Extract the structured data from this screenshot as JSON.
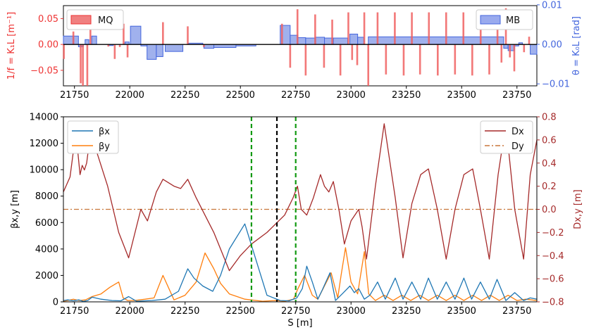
{
  "chart_data": [
    {
      "type": "bar",
      "panel": "magnet lattice",
      "x_range": [
        21700,
        23840
      ],
      "x_ticks": [
        21750,
        22000,
        22250,
        22500,
        22750,
        23000,
        23250,
        23500,
        23750
      ],
      "left_axis": {
        "label": "1/f = K₁L [m⁻¹]",
        "range": [
          -0.08,
          0.075
        ],
        "ticks": [
          0.05,
          0.0,
          -0.05
        ],
        "tick_labels": [
          "0.05",
          "0.00",
          "−0.05"
        ],
        "color": "#ee3333"
      },
      "right_axis": {
        "label": "θ = K₀L [rad]",
        "range": [
          -0.0105,
          0.0098
        ],
        "ticks": [
          0.01,
          0.0,
          -0.01
        ],
        "tick_labels": [
          "0.01",
          "0.00",
          "−0.01"
        ],
        "color": "#4466dd"
      },
      "legend_left": "MQ",
      "legend_right": "MB",
      "quadrupoles": [
        {
          "s": 21702,
          "k": -0.028
        },
        {
          "s": 21745,
          "k": 0.025
        },
        {
          "s": 21778,
          "k": -0.075
        },
        {
          "s": 21788,
          "k": -0.09
        },
        {
          "s": 21808,
          "k": -0.085
        },
        {
          "s": 21822,
          "k": 0.062
        },
        {
          "s": 21903,
          "k": -0.004
        },
        {
          "s": 21932,
          "k": -0.028
        },
        {
          "s": 21955,
          "k": -0.005
        },
        {
          "s": 21972,
          "k": 0.04
        },
        {
          "s": 21990,
          "k": -0.025
        },
        {
          "s": 22150,
          "k": 0.043
        },
        {
          "s": 22262,
          "k": 0.035
        },
        {
          "s": 22335,
          "k": -0.005
        },
        {
          "s": 22688,
          "k": 0.04
        },
        {
          "s": 22725,
          "k": -0.045
        },
        {
          "s": 22758,
          "k": 0.068
        },
        {
          "s": 22795,
          "k": -0.06
        },
        {
          "s": 22838,
          "k": 0.058
        },
        {
          "s": 22878,
          "k": -0.045
        },
        {
          "s": 22915,
          "k": 0.048
        },
        {
          "s": 22952,
          "k": -0.06
        },
        {
          "s": 22988,
          "k": 0.062
        },
        {
          "s": 23005,
          "k": -0.03
        },
        {
          "s": 23028,
          "k": -0.04
        },
        {
          "s": 23060,
          "k": 0.062
        },
        {
          "s": 23078,
          "k": -0.085
        },
        {
          "s": 23120,
          "k": 0.062
        },
        {
          "s": 23158,
          "k": -0.058
        },
        {
          "s": 23198,
          "k": 0.062
        },
        {
          "s": 23238,
          "k": -0.06
        },
        {
          "s": 23275,
          "k": 0.062
        },
        {
          "s": 23312,
          "k": -0.058
        },
        {
          "s": 23352,
          "k": 0.062
        },
        {
          "s": 23392,
          "k": -0.06
        },
        {
          "s": 23430,
          "k": 0.062
        },
        {
          "s": 23470,
          "k": -0.058
        },
        {
          "s": 23508,
          "k": 0.062
        },
        {
          "s": 23548,
          "k": -0.06
        },
        {
          "s": 23586,
          "k": 0.062
        },
        {
          "s": 23625,
          "k": -0.058
        },
        {
          "s": 23662,
          "k": 0.062
        },
        {
          "s": 23680,
          "k": -0.035
        },
        {
          "s": 23700,
          "k": 0.07
        },
        {
          "s": 23718,
          "k": -0.025
        },
        {
          "s": 23738,
          "k": -0.052
        },
        {
          "s": 23782,
          "k": -0.015
        },
        {
          "s": 23805,
          "k": 0.015
        }
      ],
      "dipoles": [
        {
          "s0": 21700,
          "s1": 21745,
          "theta": 0.0021
        },
        {
          "s0": 21745,
          "s1": 21768,
          "theta": 0.0021
        },
        {
          "s0": 21768,
          "s1": 21790,
          "theta": -0.0006
        },
        {
          "s0": 21798,
          "s1": 21815,
          "theta": 0.0012
        },
        {
          "s0": 21828,
          "s1": 21850,
          "theta": 0.0021
        },
        {
          "s0": 21905,
          "s1": 21925,
          "theta": -0.0003
        },
        {
          "s0": 21978,
          "s1": 21997,
          "theta": 0.0006
        },
        {
          "s0": 22003,
          "s1": 22050,
          "theta": 0.0046
        },
        {
          "s0": 22050,
          "s1": 22078,
          "theta": -0.0004
        },
        {
          "s0": 22078,
          "s1": 22120,
          "theta": -0.0038
        },
        {
          "s0": 22120,
          "s1": 22150,
          "theta": -0.0031
        },
        {
          "s0": 22160,
          "s1": 22240,
          "theta": -0.0018
        },
        {
          "s0": 22265,
          "s1": 22330,
          "theta": 0.0003
        },
        {
          "s0": 22335,
          "s1": 22380,
          "theta": -0.001
        },
        {
          "s0": 22380,
          "s1": 22480,
          "theta": -0.0008
        },
        {
          "s0": 22480,
          "s1": 22570,
          "theta": -0.0004
        },
        {
          "s0": 22680,
          "s1": 22725,
          "theta": 0.0048
        },
        {
          "s0": 22725,
          "s1": 22760,
          "theta": 0.0023
        },
        {
          "s0": 22760,
          "s1": 22795,
          "theta": 0.0017
        },
        {
          "s0": 22795,
          "s1": 22840,
          "theta": 0.0016
        },
        {
          "s0": 22840,
          "s1": 22880,
          "theta": 0.0018
        },
        {
          "s0": 22880,
          "s1": 22920,
          "theta": 0.0016
        },
        {
          "s0": 22920,
          "s1": 22985,
          "theta": 0.0016
        },
        {
          "s0": 22995,
          "s1": 23030,
          "theta": 0.0026
        },
        {
          "s0": 23030,
          "s1": 23058,
          "theta": 0.0018
        },
        {
          "s0": 23078,
          "s1": 23690,
          "theta": 0.0019
        },
        {
          "s0": 23690,
          "s1": 23710,
          "theta": -0.001
        },
        {
          "s0": 23710,
          "s1": 23738,
          "theta": -0.0016
        },
        {
          "s0": 23738,
          "s1": 23758,
          "theta": -0.0004
        },
        {
          "s0": 23758,
          "s1": 23775,
          "theta": 0.0004
        },
        {
          "s0": 23810,
          "s1": 23840,
          "theta": -0.0025
        }
      ]
    },
    {
      "type": "line",
      "panel": "optics",
      "x_range": [
        21700,
        23840
      ],
      "x_ticks": [
        21750,
        22000,
        22250,
        22500,
        22750,
        23000,
        23250,
        23500,
        23750
      ],
      "xlabel": "S [m]",
      "left_axis": {
        "label": "βx,y [m]",
        "range": [
          0,
          14000
        ],
        "ticks": [
          0,
          2000,
          4000,
          6000,
          8000,
          10000,
          12000,
          14000
        ]
      },
      "right_axis": {
        "label": "Dx,y [m]",
        "range": [
          -0.8,
          0.8
        ],
        "ticks": [
          0.8,
          0.6,
          0.4,
          0.2,
          0.0,
          -0.2,
          -0.4,
          -0.6,
          -0.8
        ],
        "tick_labels": [
          "0.8",
          "0.6",
          "0.4",
          "0.2",
          "0.0",
          "−0.2",
          "−0.4",
          "−0.6",
          "−0.8"
        ],
        "color": "#a52a2a"
      },
      "legend_left": [
        "βx",
        "βy"
      ],
      "legend_right": [
        "Dx",
        "Dy"
      ],
      "vlines": [
        {
          "s": 22550,
          "style": "green-dashed"
        },
        {
          "s": 22665,
          "style": "black-dashed"
        },
        {
          "s": 22750,
          "style": "green-dashed"
        }
      ],
      "beta_x": {
        "color": "#1f77b4",
        "x": [
          21700,
          21720,
          21745,
          21770,
          21790,
          21810,
          21830,
          21870,
          21920,
          21960,
          21995,
          22030,
          22100,
          22160,
          22220,
          22262,
          22290,
          22330,
          22375,
          22410,
          22450,
          22520,
          22620,
          22680,
          22720,
          22755,
          22780,
          22800,
          22825,
          22850,
          22870,
          22905,
          22930,
          22960,
          22995,
          23015,
          23035,
          23060,
          23085,
          23120,
          23155,
          23200,
          23235,
          23275,
          23315,
          23350,
          23390,
          23430,
          23470,
          23510,
          23545,
          23585,
          23625,
          23660,
          23700,
          23740,
          23780,
          23810,
          23840
        ],
        "y": [
          100,
          150,
          80,
          150,
          30,
          100,
          350,
          200,
          100,
          80,
          400,
          50,
          100,
          200,
          800,
          2500,
          1800,
          1200,
          800,
          2000,
          4000,
          5900,
          500,
          100,
          80,
          300,
          1000,
          2700,
          1500,
          200,
          900,
          2200,
          100,
          600,
          1200,
          700,
          1000,
          200,
          500,
          1500,
          200,
          1800,
          200,
          1500,
          200,
          1800,
          200,
          1500,
          200,
          1800,
          200,
          1500,
          200,
          1700,
          100,
          700,
          100,
          300,
          200
        ]
      },
      "beta_y": {
        "color": "#ff7f0e",
        "x": [
          21700,
          21720,
          21745,
          21770,
          21800,
          21830,
          21870,
          21910,
          21950,
          21970,
          21990,
          22020,
          22070,
          22110,
          22150,
          22200,
          22250,
          22300,
          22340,
          22380,
          22410,
          22450,
          22520,
          22600,
          22660,
          22700,
          22740,
          22760,
          22790,
          22825,
          22850,
          22880,
          22910,
          22940,
          22955,
          22975,
          23000,
          23030,
          23060,
          23080,
          23110,
          23150,
          23190,
          23230,
          23270,
          23310,
          23350,
          23390,
          23430,
          23470,
          23510,
          23550,
          23590,
          23630,
          23670,
          23710,
          23750,
          23790,
          23840
        ],
        "y": [
          50,
          100,
          200,
          100,
          150,
          400,
          600,
          1100,
          1500,
          300,
          100,
          100,
          200,
          300,
          2000,
          150,
          500,
          1500,
          3700,
          2500,
          1400,
          600,
          200,
          50,
          100,
          50,
          200,
          1000,
          2000,
          500,
          200,
          1200,
          2200,
          300,
          2000,
          4100,
          1500,
          600,
          3800,
          600,
          100,
          500,
          100,
          500,
          100,
          500,
          100,
          500,
          100,
          500,
          100,
          500,
          100,
          500,
          100,
          500,
          100,
          200,
          100
        ]
      },
      "disp_x": {
        "color": "#a52a2a",
        "x": [
          21700,
          21730,
          21745,
          21760,
          21775,
          21785,
          21795,
          21805,
          21822,
          21850,
          21900,
          21950,
          21995,
          22050,
          22080,
          22120,
          22150,
          22200,
          22230,
          22262,
          22300,
          22380,
          22450,
          22500,
          22550,
          22620,
          22700,
          22738,
          22758,
          22775,
          22800,
          22830,
          22862,
          22880,
          22900,
          22920,
          22945,
          22970,
          23000,
          23035,
          23050,
          23070,
          23110,
          23150,
          23200,
          23235,
          23275,
          23315,
          23350,
          23390,
          23430,
          23470,
          23510,
          23550,
          23585,
          23625,
          23665,
          23700,
          23740,
          23780,
          23810,
          23840
        ],
        "y": [
          0.15,
          0.28,
          0.5,
          0.6,
          0.3,
          0.38,
          0.34,
          0.4,
          0.65,
          0.5,
          0.2,
          -0.2,
          -0.42,
          0.0,
          -0.1,
          0.15,
          0.26,
          0.2,
          0.18,
          0.26,
          0.1,
          -0.2,
          -0.53,
          -0.4,
          -0.3,
          -0.2,
          -0.05,
          0.1,
          0.2,
          0.0,
          -0.05,
          0.1,
          0.3,
          0.2,
          0.15,
          0.24,
          0.0,
          -0.3,
          -0.1,
          0.0,
          -0.15,
          -0.43,
          0.2,
          0.74,
          0.1,
          -0.42,
          0.05,
          0.3,
          0.35,
          0.0,
          -0.43,
          0.0,
          0.3,
          0.35,
          0.0,
          -0.43,
          0.3,
          0.74,
          0.0,
          -0.43,
          0.3,
          0.6
        ]
      },
      "disp_y": {
        "color": "#c8773a",
        "x": [
          21700,
          23840
        ],
        "y": [
          0.0,
          0.0
        ]
      }
    }
  ]
}
